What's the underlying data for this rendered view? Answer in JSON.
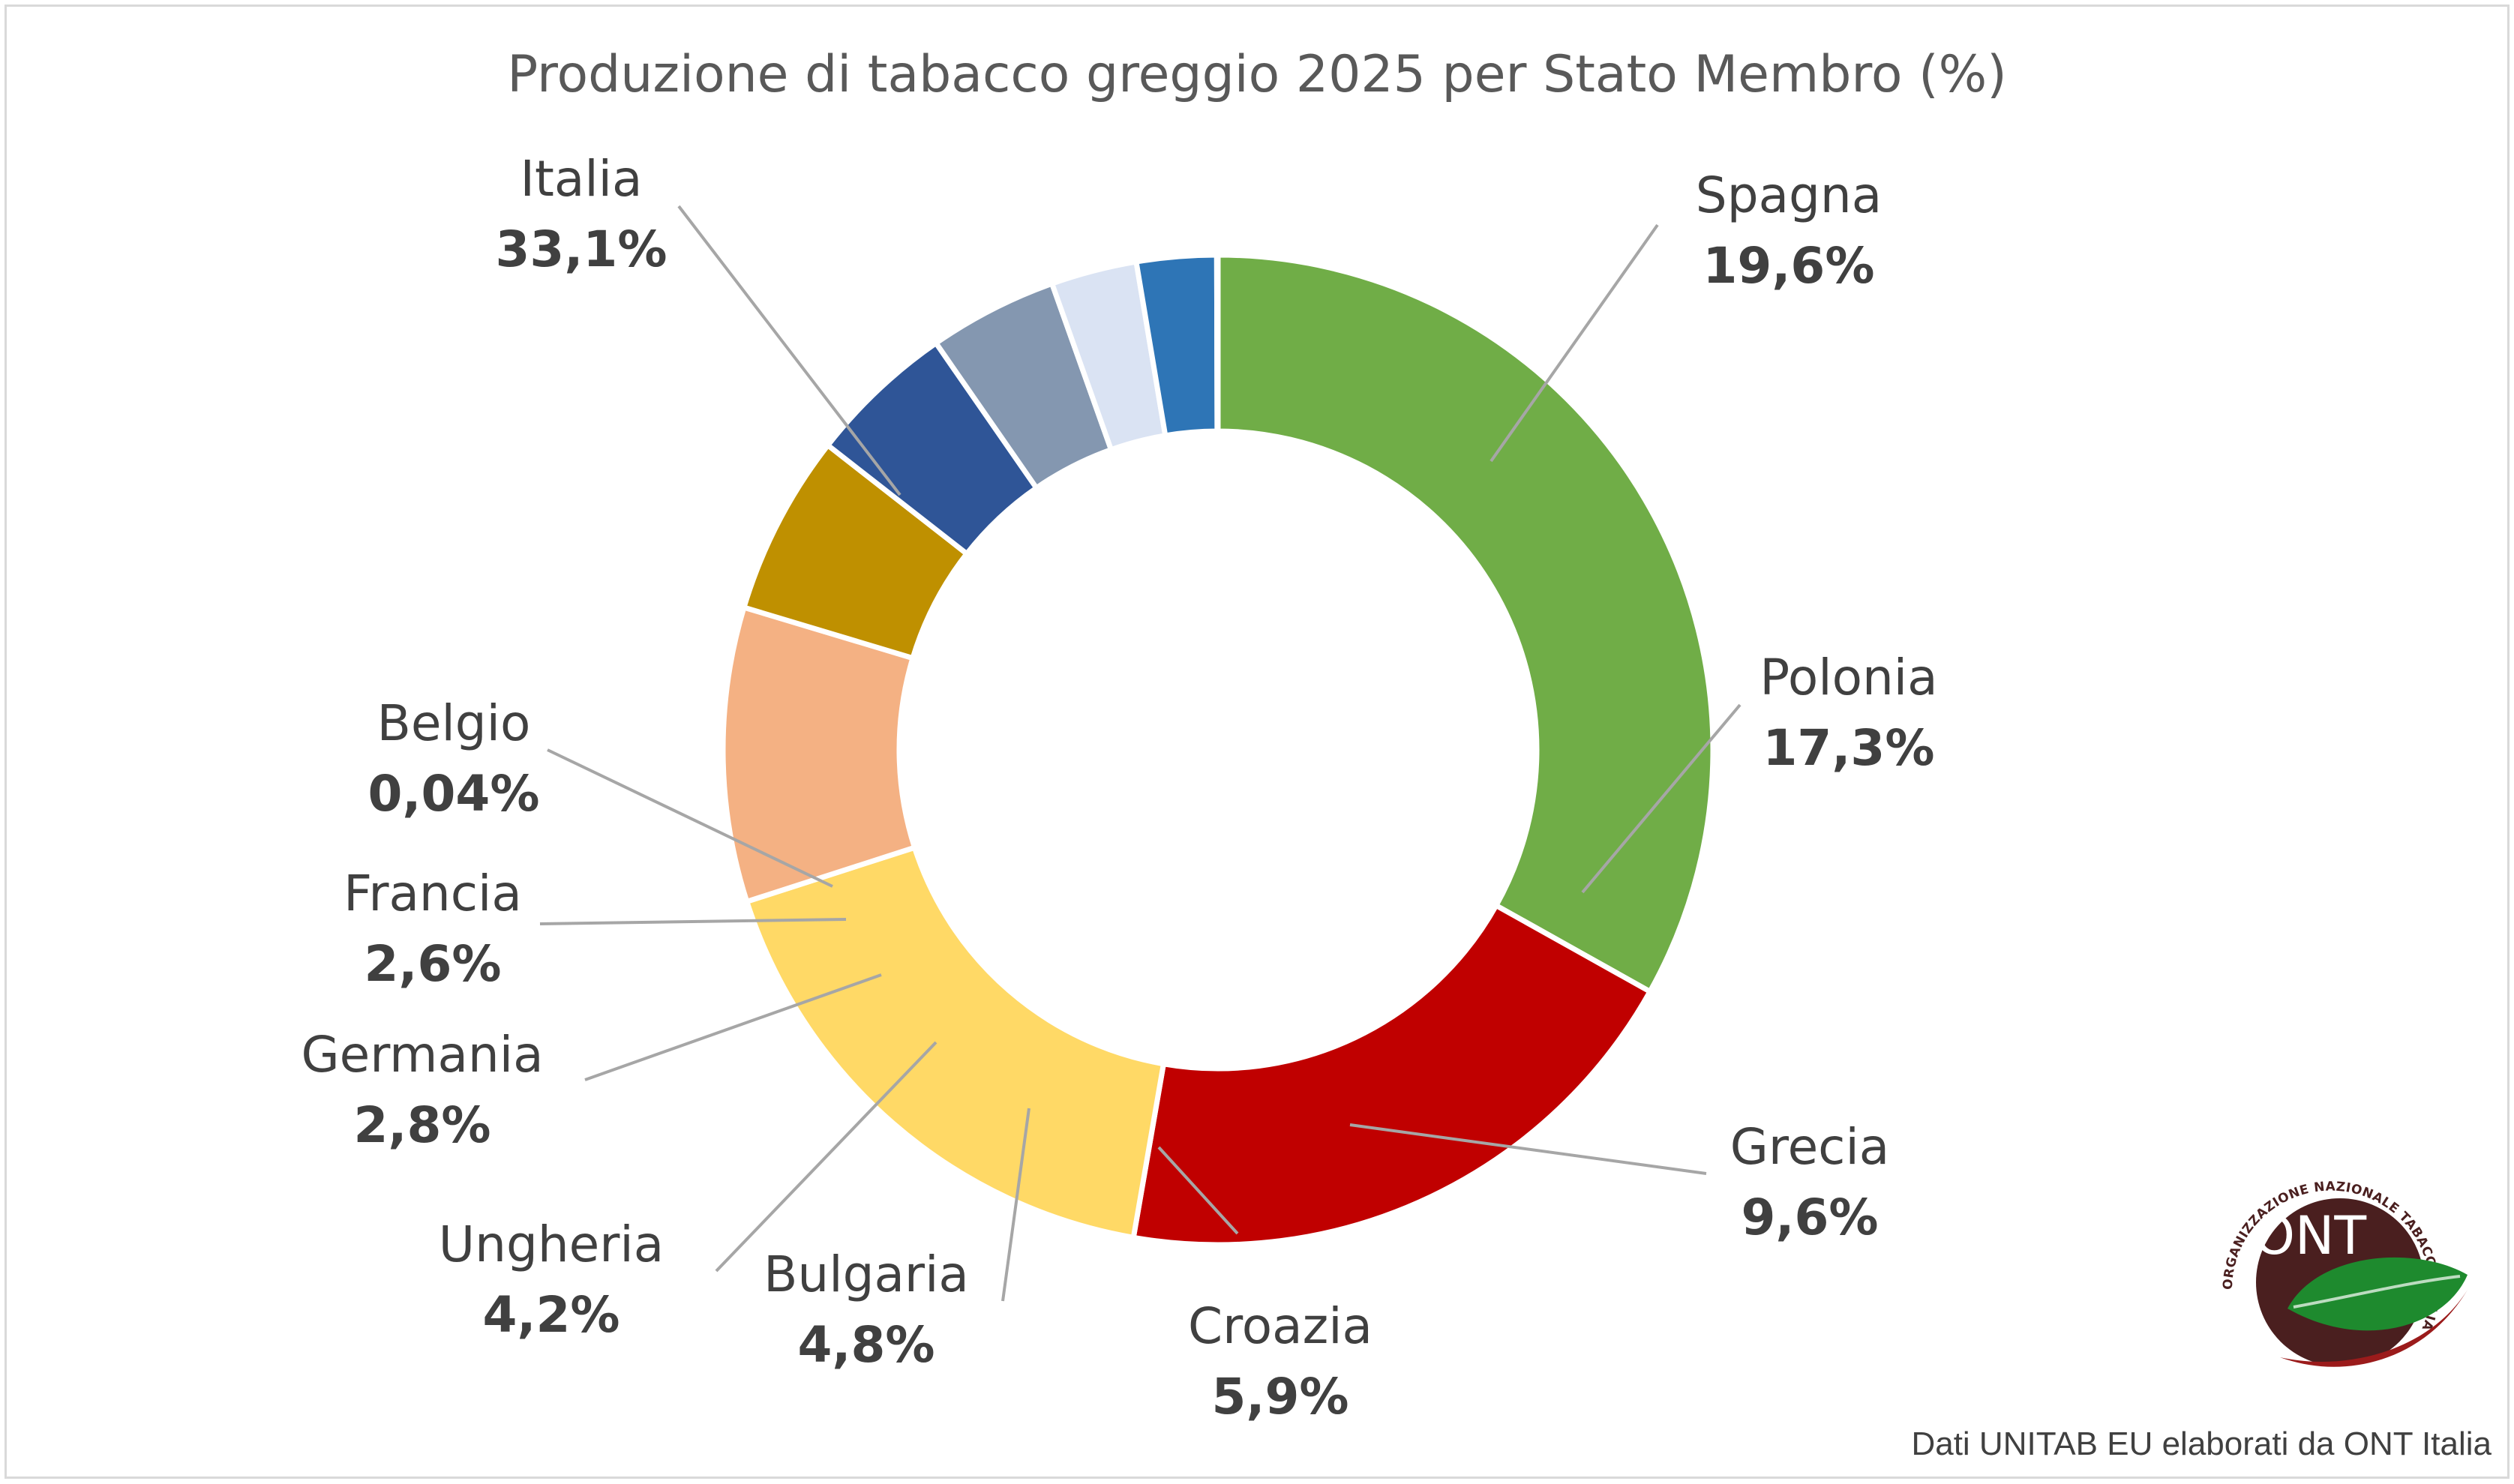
{
  "chart_data": {
    "type": "pie",
    "style": "donut",
    "title": "Produzione di tabacco greggio 2025 per Stato Membro (%)",
    "unit": "%",
    "slices": [
      {
        "name": "Italia",
        "value": 33.1,
        "label": "33,1%",
        "color": "#70ad47"
      },
      {
        "name": "Spagna",
        "value": 19.6,
        "label": "19,6%",
        "color": "#c00000"
      },
      {
        "name": "Polonia",
        "value": 17.3,
        "label": "17,3%",
        "color": "#ffd966"
      },
      {
        "name": "Grecia",
        "value": 9.6,
        "label": "9,6%",
        "color": "#f4b183"
      },
      {
        "name": "Croazia",
        "value": 5.9,
        "label": "5,9%",
        "color": "#bf9000"
      },
      {
        "name": "Bulgaria",
        "value": 4.8,
        "label": "4,8%",
        "color": "#2f5597"
      },
      {
        "name": "Ungheria",
        "value": 4.2,
        "label": "4,2%",
        "color": "#8497b0"
      },
      {
        "name": "Germania",
        "value": 2.8,
        "label": "2,8%",
        "color": "#dae3f3"
      },
      {
        "name": "Francia",
        "value": 2.6,
        "label": "2,6%",
        "color": "#2e75b6"
      },
      {
        "name": "Belgio",
        "value": 0.04,
        "label": "0,04%",
        "color": "#1f4e79"
      }
    ],
    "leader_line_color": "#a6a6a6",
    "legend": "none"
  },
  "source_note": "Dati UNITAB EU elaborati da ONT Italia",
  "logo": {
    "text_main": "ONT",
    "ring_text": "ORGANIZZAZIONE NAZIONALE TABACCO ITALIA SCARL",
    "colors": {
      "disc": "#4a1f1f",
      "leaf": "#1e8a2e",
      "swoosh": "#9b1b1b"
    }
  }
}
